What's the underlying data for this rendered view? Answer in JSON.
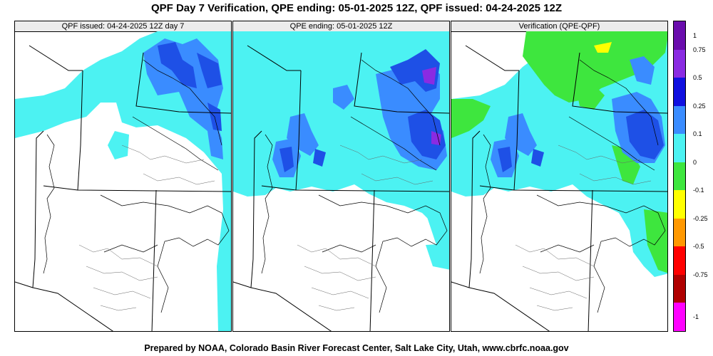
{
  "title": "QPF Day 7 Verification, QPE ending: 05-01-2025 12Z, QPF issued: 04-24-2025 12Z",
  "footer": "Prepared by NOAA, Colorado Basin River Forecast Center, Salt Lake City, Utah, www.cbrfc.noaa.gov",
  "panels": [
    {
      "title": "QPF issued: 04-24-2025 12Z day 7"
    },
    {
      "title": "QPE ending: 05-01-2025 12Z"
    },
    {
      "title": "Verification (QPE-QPF)"
    }
  ],
  "colorbar": {
    "labels": [
      "1",
      "0.75",
      "0.5",
      "0.25",
      "0.1",
      "0",
      "-0.1",
      "-0.25",
      "-0.5",
      "-0.75",
      "-1"
    ],
    "colors": [
      "#6a0dad",
      "#8a2be2",
      "#1010e0",
      "#3a8cff",
      "#4cf2f2",
      "#3ee63e",
      "#ffff00",
      "#ff9800",
      "#ff0000",
      "#b00000",
      "#ff00ff"
    ]
  }
}
